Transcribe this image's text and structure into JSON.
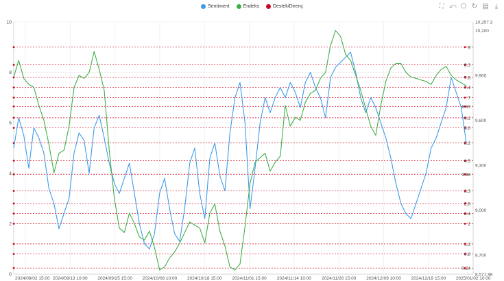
{
  "legend": [
    {
      "name": "Sentiment",
      "color": "#3d9be9"
    },
    {
      "name": "Endeks",
      "color": "#3fae49"
    },
    {
      "name": "Destek/Direnç",
      "color": "#d0021b"
    }
  ],
  "toolbox": [
    "zoom-icon",
    "zoom-reset-icon",
    "lasso-icon",
    "restore-icon",
    "data-view-icon",
    "save-image-icon"
  ],
  "chart_data": {
    "type": "line",
    "x_labels": [
      "2024/09/02 15:00",
      "2024/09/13 10:00",
      "2024/09/25 15:00",
      "2024/10/08 10:00",
      "2024/10/18 15:00",
      "2024/11/01 15:00",
      "2024/11/14 10:00",
      "2024/11/26 15:00",
      "2024/12/09 10:00",
      "2024/12/19 15:00",
      "2025/01/02 10:00"
    ],
    "left_axis": {
      "min": 0,
      "max": 10,
      "ticks": [
        0,
        2,
        4,
        6,
        8,
        10
      ]
    },
    "right_axis": {
      "min": 8571.98,
      "max": 10257.3,
      "ticks": [
        "8,571.98",
        "8,700",
        "9,000",
        "9,300",
        "9,600",
        "9,900",
        "10,200",
        "10,257.3"
      ]
    },
    "support_levels": [
      0.24,
      0.8,
      1.2,
      2,
      2.4,
      2.8,
      3.3,
      3.96,
      4.5,
      5.2,
      5.8,
      6.2,
      6.65,
      7,
      7.4,
      7.8,
      8.3,
      9
    ],
    "series": [
      {
        "name": "Sentiment",
        "color": "#3d9be9",
        "axis": "left",
        "values": [
          5.0,
          6.2,
          5.5,
          4.2,
          5.8,
          5.4,
          4.8,
          3.4,
          2.8,
          1.8,
          2.4,
          3.0,
          4.8,
          5.6,
          5.3,
          4.0,
          5.8,
          6.3,
          5.4,
          4.4,
          3.6,
          3.2,
          3.8,
          4.4,
          3.2,
          2.0,
          1.2,
          1.0,
          1.6,
          3.2,
          3.8,
          2.6,
          1.6,
          1.3,
          2.6,
          4.4,
          5.0,
          3.2,
          2.2,
          4.6,
          5.2,
          3.9,
          3.3,
          5.6,
          7.0,
          7.6,
          6.0,
          2.6,
          4.2,
          6.0,
          7.0,
          6.4,
          7.0,
          7.4,
          7.0,
          7.6,
          7.2,
          6.6,
          7.6,
          8.0,
          7.4,
          7.0,
          6.2,
          7.8,
          8.2,
          8.4,
          8.6,
          8.8,
          8.0,
          7.0,
          6.4,
          7.0,
          6.6,
          6.0,
          5.4,
          4.6,
          3.6,
          2.8,
          2.4,
          2.2,
          2.8,
          3.4,
          4.0,
          5.0,
          5.4,
          6.0,
          6.6,
          7.8,
          7.2,
          6.6,
          5.2
        ]
      },
      {
        "name": "Endeks",
        "color": "#3fae49",
        "axis": "right",
        "values": [
          9890,
          10000,
          9880,
          9840,
          9820,
          9700,
          9600,
          9440,
          9250,
          9380,
          9400,
          9560,
          9820,
          9900,
          9880,
          9920,
          10060,
          9940,
          9800,
          9400,
          9080,
          8880,
          8850,
          8980,
          8910,
          8820,
          8800,
          8860,
          8750,
          8600,
          8620,
          8680,
          8720,
          8780,
          8850,
          8920,
          8900,
          8880,
          8780,
          8980,
          9040,
          8860,
          8760,
          8620,
          8600,
          8640,
          8890,
          9180,
          9320,
          9350,
          9380,
          9260,
          9320,
          9360,
          9700,
          9560,
          9620,
          9600,
          9720,
          9780,
          9800,
          9880,
          9920,
          10100,
          10200,
          10160,
          10040,
          10000,
          9900,
          9800,
          9680,
          9560,
          9500,
          9700,
          9860,
          9950,
          9980,
          9980,
          9920,
          9890,
          9880,
          9870,
          9860,
          9840,
          9900,
          9940,
          9960,
          9900,
          9870,
          9850,
          9830
        ]
      }
    ]
  }
}
